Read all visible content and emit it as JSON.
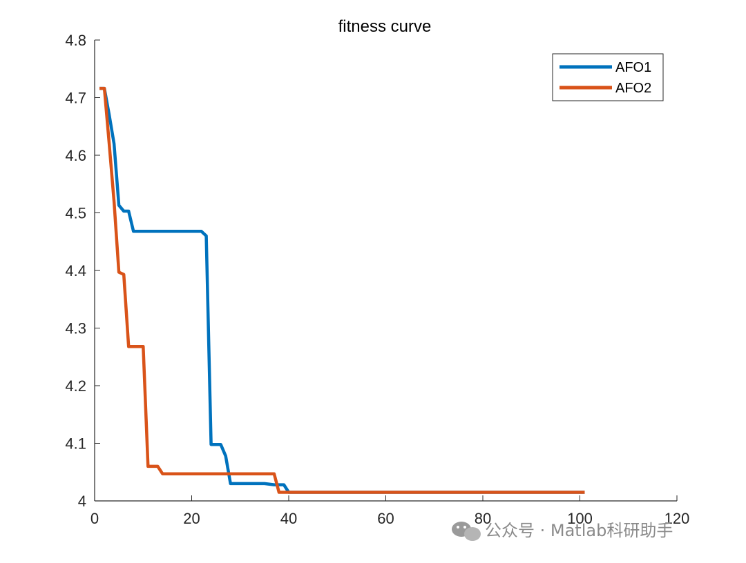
{
  "chart_data": {
    "type": "line",
    "title": "fitness curve",
    "xlabel": "",
    "ylabel": "",
    "xlim": [
      0,
      120
    ],
    "ylim": [
      4,
      4.8
    ],
    "xticks": [
      "0",
      "20",
      "40",
      "60",
      "80",
      "100",
      "120"
    ],
    "yticks": [
      "4",
      "4.1",
      "4.2",
      "4.3",
      "4.4",
      "4.5",
      "4.6",
      "4.7",
      "4.8"
    ],
    "xtick_values": [
      0,
      20,
      40,
      60,
      80,
      100,
      120
    ],
    "ytick_values": [
      4,
      4.1,
      4.2,
      4.3,
      4.4,
      4.5,
      4.6,
      4.7,
      4.8
    ],
    "grid": false,
    "legend_position": "top-right",
    "series": [
      {
        "name": "AFO1",
        "color": "#0072BD",
        "x": [
          1,
          2,
          3,
          4,
          5,
          6,
          7,
          8,
          9,
          10,
          15,
          20,
          22,
          23,
          24,
          25,
          26,
          27,
          28,
          30,
          35,
          37,
          39,
          40,
          45,
          60,
          80,
          100,
          101
        ],
        "y": [
          4.716,
          4.716,
          4.67,
          4.62,
          4.513,
          4.503,
          4.503,
          4.468,
          4.468,
          4.468,
          4.468,
          4.468,
          4.468,
          4.46,
          4.098,
          4.098,
          4.098,
          4.078,
          4.03,
          4.03,
          4.03,
          4.028,
          4.028,
          4.015,
          4.015,
          4.015,
          4.015,
          4.015,
          4.015
        ]
      },
      {
        "name": "AFO2",
        "color": "#D95319",
        "x": [
          1,
          2,
          3,
          4,
          5,
          6,
          7,
          8,
          9,
          10,
          11,
          12,
          13,
          14,
          15,
          20,
          30,
          37,
          38,
          40,
          60,
          80,
          100,
          101
        ],
        "y": [
          4.716,
          4.716,
          4.62,
          4.52,
          4.397,
          4.393,
          4.268,
          4.268,
          4.268,
          4.268,
          4.06,
          4.06,
          4.06,
          4.047,
          4.047,
          4.047,
          4.047,
          4.047,
          4.015,
          4.015,
          4.015,
          4.015,
          4.015,
          4.015
        ]
      }
    ]
  },
  "watermark": {
    "text": "公众号 · Matlab科研助手",
    "icon": "wechat-icon"
  }
}
